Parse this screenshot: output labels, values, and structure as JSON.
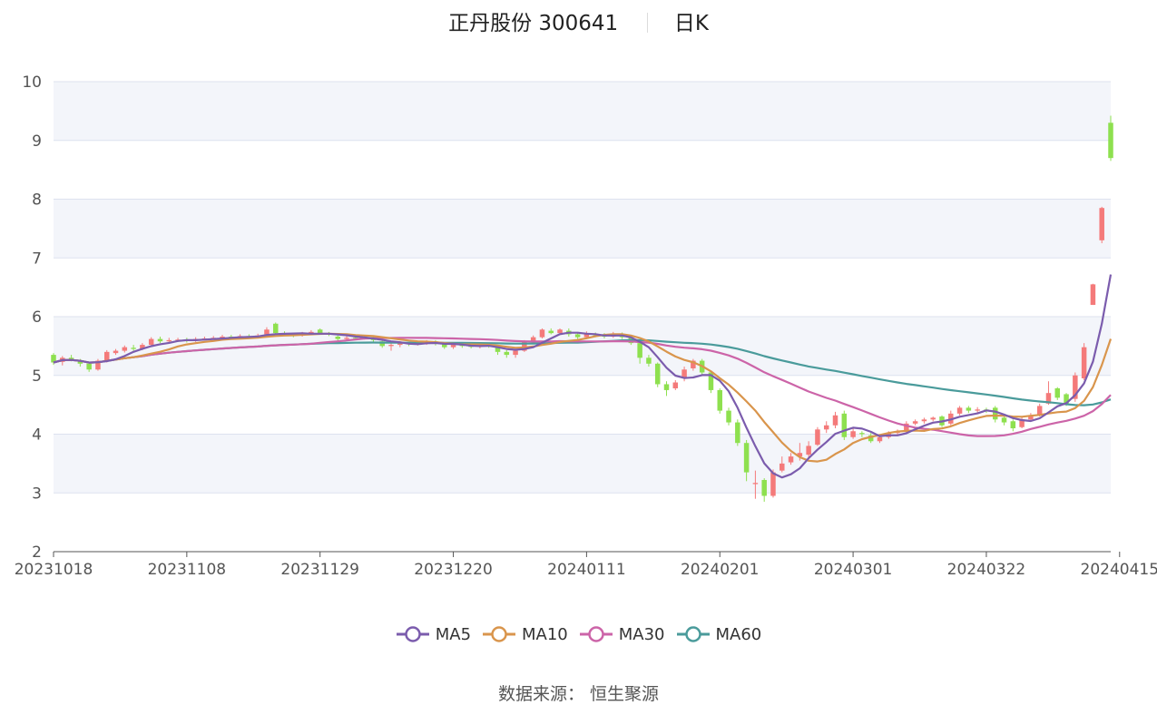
{
  "header": {
    "stock_name": "正丹股份 300641",
    "period": "日K"
  },
  "source": "数据来源： 恒生聚源",
  "colors": {
    "up": "#f47a7a",
    "down": "#8ee04f",
    "MA5": "#7b5cad",
    "MA10": "#d9954c",
    "MA30": "#cc64a8",
    "MA60": "#4a9b9b",
    "band": "#f3f5fa",
    "grid": "#dde2ef"
  },
  "chart_data": {
    "type": "candlestick",
    "ylim": [
      2,
      10
    ],
    "y_ticks": [
      2,
      3,
      4,
      5,
      6,
      7,
      8,
      9,
      10
    ],
    "x_tick_labels": [
      "20231018",
      "20231108",
      "20231129",
      "20231220",
      "20240111",
      "20240201",
      "20240301",
      "20240322",
      "20240415"
    ],
    "x_tick_index": [
      0,
      15,
      30,
      45,
      60,
      75,
      90,
      105,
      120
    ],
    "legend": [
      "MA5",
      "MA10",
      "MA30",
      "MA60"
    ],
    "candles": [
      [
        5.35,
        5.22,
        5.38,
        5.18
      ],
      [
        5.23,
        5.3,
        5.33,
        5.17
      ],
      [
        5.3,
        5.27,
        5.35,
        5.24
      ],
      [
        5.24,
        5.2,
        5.28,
        5.15
      ],
      [
        5.2,
        5.1,
        5.22,
        5.06
      ],
      [
        5.1,
        5.25,
        5.28,
        5.08
      ],
      [
        5.25,
        5.4,
        5.43,
        5.22
      ],
      [
        5.38,
        5.42,
        5.45,
        5.35
      ],
      [
        5.42,
        5.48,
        5.51,
        5.39
      ],
      [
        5.47,
        5.45,
        5.52,
        5.42
      ],
      [
        5.45,
        5.52,
        5.55,
        5.43
      ],
      [
        5.52,
        5.62,
        5.65,
        5.5
      ],
      [
        5.62,
        5.58,
        5.66,
        5.55
      ],
      [
        5.58,
        5.6,
        5.64,
        5.55
      ],
      [
        5.6,
        5.61,
        5.64,
        5.57
      ],
      [
        5.61,
        5.59,
        5.64,
        5.56
      ],
      [
        5.59,
        5.62,
        5.65,
        5.57
      ],
      [
        5.62,
        5.63,
        5.66,
        5.6
      ],
      [
        5.63,
        5.64,
        5.67,
        5.61
      ],
      [
        5.64,
        5.66,
        5.69,
        5.62
      ],
      [
        5.66,
        5.65,
        5.69,
        5.62
      ],
      [
        5.65,
        5.67,
        5.7,
        5.63
      ],
      [
        5.67,
        5.66,
        5.7,
        5.63
      ],
      [
        5.66,
        5.68,
        5.71,
        5.63
      ],
      [
        5.7,
        5.78,
        5.82,
        5.68
      ],
      [
        5.88,
        5.72,
        5.9,
        5.7
      ],
      [
        5.72,
        5.7,
        5.75,
        5.67
      ],
      [
        5.7,
        5.68,
        5.73,
        5.65
      ],
      [
        5.68,
        5.71,
        5.74,
        5.66
      ],
      [
        5.71,
        5.74,
        5.77,
        5.69
      ],
      [
        5.78,
        5.72,
        5.8,
        5.7
      ],
      [
        5.72,
        5.7,
        5.74,
        5.67
      ],
      [
        5.66,
        5.62,
        5.68,
        5.59
      ],
      [
        5.62,
        5.64,
        5.67,
        5.6
      ],
      [
        5.64,
        5.63,
        5.66,
        5.6
      ],
      [
        5.63,
        5.65,
        5.68,
        5.61
      ],
      [
        5.65,
        5.6,
        5.67,
        5.57
      ],
      [
        5.58,
        5.5,
        5.6,
        5.47
      ],
      [
        5.5,
        5.52,
        5.55,
        5.42
      ],
      [
        5.52,
        5.55,
        5.58,
        5.48
      ],
      [
        5.55,
        5.53,
        5.57,
        5.5
      ],
      [
        5.53,
        5.56,
        5.59,
        5.51
      ],
      [
        5.56,
        5.58,
        5.6,
        5.52
      ],
      [
        5.58,
        5.54,
        5.6,
        5.51
      ],
      [
        5.54,
        5.48,
        5.56,
        5.45
      ],
      [
        5.48,
        5.52,
        5.54,
        5.45
      ],
      [
        5.52,
        5.5,
        5.54,
        5.47
      ],
      [
        5.5,
        5.49,
        5.53,
        5.46
      ],
      [
        5.49,
        5.51,
        5.53,
        5.46
      ],
      [
        5.51,
        5.5,
        5.53,
        5.47
      ],
      [
        5.5,
        5.4,
        5.52,
        5.35
      ],
      [
        5.4,
        5.35,
        5.43,
        5.3
      ],
      [
        5.35,
        5.42,
        5.45,
        5.3
      ],
      [
        5.42,
        5.58,
        5.6,
        5.4
      ],
      [
        5.58,
        5.65,
        5.68,
        5.55
      ],
      [
        5.65,
        5.78,
        5.8,
        5.63
      ],
      [
        5.76,
        5.72,
        5.8,
        5.7
      ],
      [
        5.72,
        5.78,
        5.8,
        5.7
      ],
      [
        5.76,
        5.7,
        5.8,
        5.66
      ],
      [
        5.7,
        5.65,
        5.73,
        5.62
      ],
      [
        5.65,
        5.7,
        5.75,
        5.62
      ],
      [
        5.7,
        5.68,
        5.73,
        5.65
      ],
      [
        5.68,
        5.66,
        5.72,
        5.63
      ],
      [
        5.66,
        5.7,
        5.74,
        5.64
      ],
      [
        5.7,
        5.65,
        5.73,
        5.62
      ],
      [
        5.65,
        5.55,
        5.68,
        5.52
      ],
      [
        5.55,
        5.3,
        5.58,
        5.2
      ],
      [
        5.3,
        5.2,
        5.35,
        5.15
      ],
      [
        5.2,
        4.85,
        5.22,
        4.8
      ],
      [
        4.85,
        4.75,
        4.9,
        4.65
      ],
      [
        4.78,
        4.88,
        4.92,
        4.75
      ],
      [
        4.95,
        5.1,
        5.15,
        4.9
      ],
      [
        5.12,
        5.25,
        5.28,
        5.08
      ],
      [
        5.25,
        5.05,
        5.28,
        5.0
      ],
      [
        5.05,
        4.75,
        5.08,
        4.7
      ],
      [
        4.75,
        4.4,
        4.78,
        4.35
      ],
      [
        4.4,
        4.2,
        4.45,
        4.15
      ],
      [
        4.2,
        3.85,
        4.25,
        3.8
      ],
      [
        3.85,
        3.35,
        3.9,
        3.2
      ],
      [
        3.15,
        3.17,
        3.38,
        2.9
      ],
      [
        3.22,
        2.95,
        3.25,
        2.85
      ],
      [
        2.95,
        3.35,
        3.4,
        2.92
      ],
      [
        3.38,
        3.5,
        3.62,
        3.35
      ],
      [
        3.52,
        3.62,
        3.68,
        3.48
      ],
      [
        3.62,
        3.68,
        3.85,
        3.55
      ],
      [
        3.65,
        3.8,
        3.88,
        3.6
      ],
      [
        3.82,
        4.08,
        4.12,
        3.8
      ],
      [
        4.08,
        4.15,
        4.22,
        4.02
      ],
      [
        4.15,
        4.32,
        4.38,
        4.1
      ],
      [
        4.35,
        3.95,
        4.4,
        3.9
      ],
      [
        3.95,
        4.05,
        4.1,
        3.92
      ],
      [
        4.02,
        4.0,
        4.05,
        3.95
      ],
      [
        3.98,
        3.88,
        4.02,
        3.85
      ],
      [
        3.88,
        3.95,
        3.98,
        3.85
      ],
      [
        3.95,
        4.02,
        4.05,
        3.92
      ],
      [
        4.02,
        4.05,
        4.08,
        3.98
      ],
      [
        4.05,
        4.18,
        4.22,
        4.02
      ],
      [
        4.18,
        4.22,
        4.25,
        4.15
      ],
      [
        4.22,
        4.25,
        4.28,
        4.18
      ],
      [
        4.25,
        4.28,
        4.3,
        4.22
      ],
      [
        4.3,
        4.15,
        4.32,
        4.12
      ],
      [
        4.18,
        4.35,
        4.4,
        4.15
      ],
      [
        4.35,
        4.45,
        4.48,
        4.32
      ],
      [
        4.45,
        4.4,
        4.48,
        4.36
      ],
      [
        4.4,
        4.42,
        4.46,
        4.37
      ],
      [
        4.42,
        4.4,
        4.45,
        4.36
      ],
      [
        4.45,
        4.25,
        4.48,
        4.2
      ],
      [
        4.28,
        4.2,
        4.32,
        4.15
      ],
      [
        4.22,
        4.1,
        4.25,
        4.05
      ],
      [
        4.12,
        4.25,
        4.3,
        4.1
      ],
      [
        4.25,
        4.32,
        4.36,
        4.22
      ],
      [
        4.32,
        4.48,
        4.52,
        4.3
      ],
      [
        4.52,
        4.7,
        4.9,
        4.5
      ],
      [
        4.78,
        4.62,
        4.8,
        4.58
      ],
      [
        4.68,
        4.52,
        4.7,
        4.48
      ],
      [
        4.6,
        5.0,
        5.05,
        4.55
      ],
      [
        4.95,
        5.48,
        5.55,
        4.92
      ],
      [
        6.2,
        6.55,
        6.56,
        6.2
      ],
      [
        7.3,
        7.85,
        7.87,
        7.25
      ],
      [
        9.3,
        8.7,
        9.42,
        8.65
      ]
    ]
  }
}
